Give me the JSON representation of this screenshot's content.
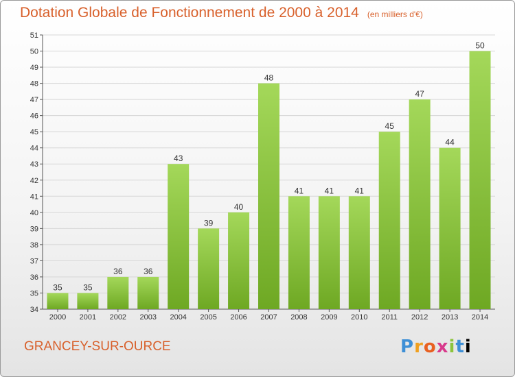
{
  "header": {
    "title": "Dotation Globale de Fonctionnement de 2000 à 2014",
    "unit": "(en milliers d'€)"
  },
  "footer": {
    "commune": "GRANCEY-SUR-OURCE",
    "logo": [
      "P",
      "r",
      "o",
      "x",
      "i",
      "t",
      "i"
    ]
  },
  "colors": {
    "title": "#d8602b",
    "bar_light": "#a4d85a",
    "bar_dark": "#6ea823",
    "grid": "#d6d6d6"
  },
  "chart_data": {
    "type": "bar",
    "title": "Dotation Globale de Fonctionnement de 2000 à 2014",
    "categories": [
      "2000",
      "2001",
      "2002",
      "2003",
      "2004",
      "2005",
      "2006",
      "2007",
      "2008",
      "2009",
      "2010",
      "2011",
      "2012",
      "2013",
      "2014"
    ],
    "values": [
      35,
      35,
      36,
      36,
      43,
      39,
      40,
      48,
      41,
      41,
      41,
      45,
      47,
      44,
      50
    ],
    "ylim": [
      34,
      51
    ],
    "yticks": [
      34,
      35,
      36,
      37,
      38,
      39,
      40,
      41,
      42,
      43,
      44,
      45,
      46,
      47,
      48,
      49,
      50,
      51
    ],
    "grid": "horizontal",
    "xlabel": "",
    "ylabel": ""
  }
}
